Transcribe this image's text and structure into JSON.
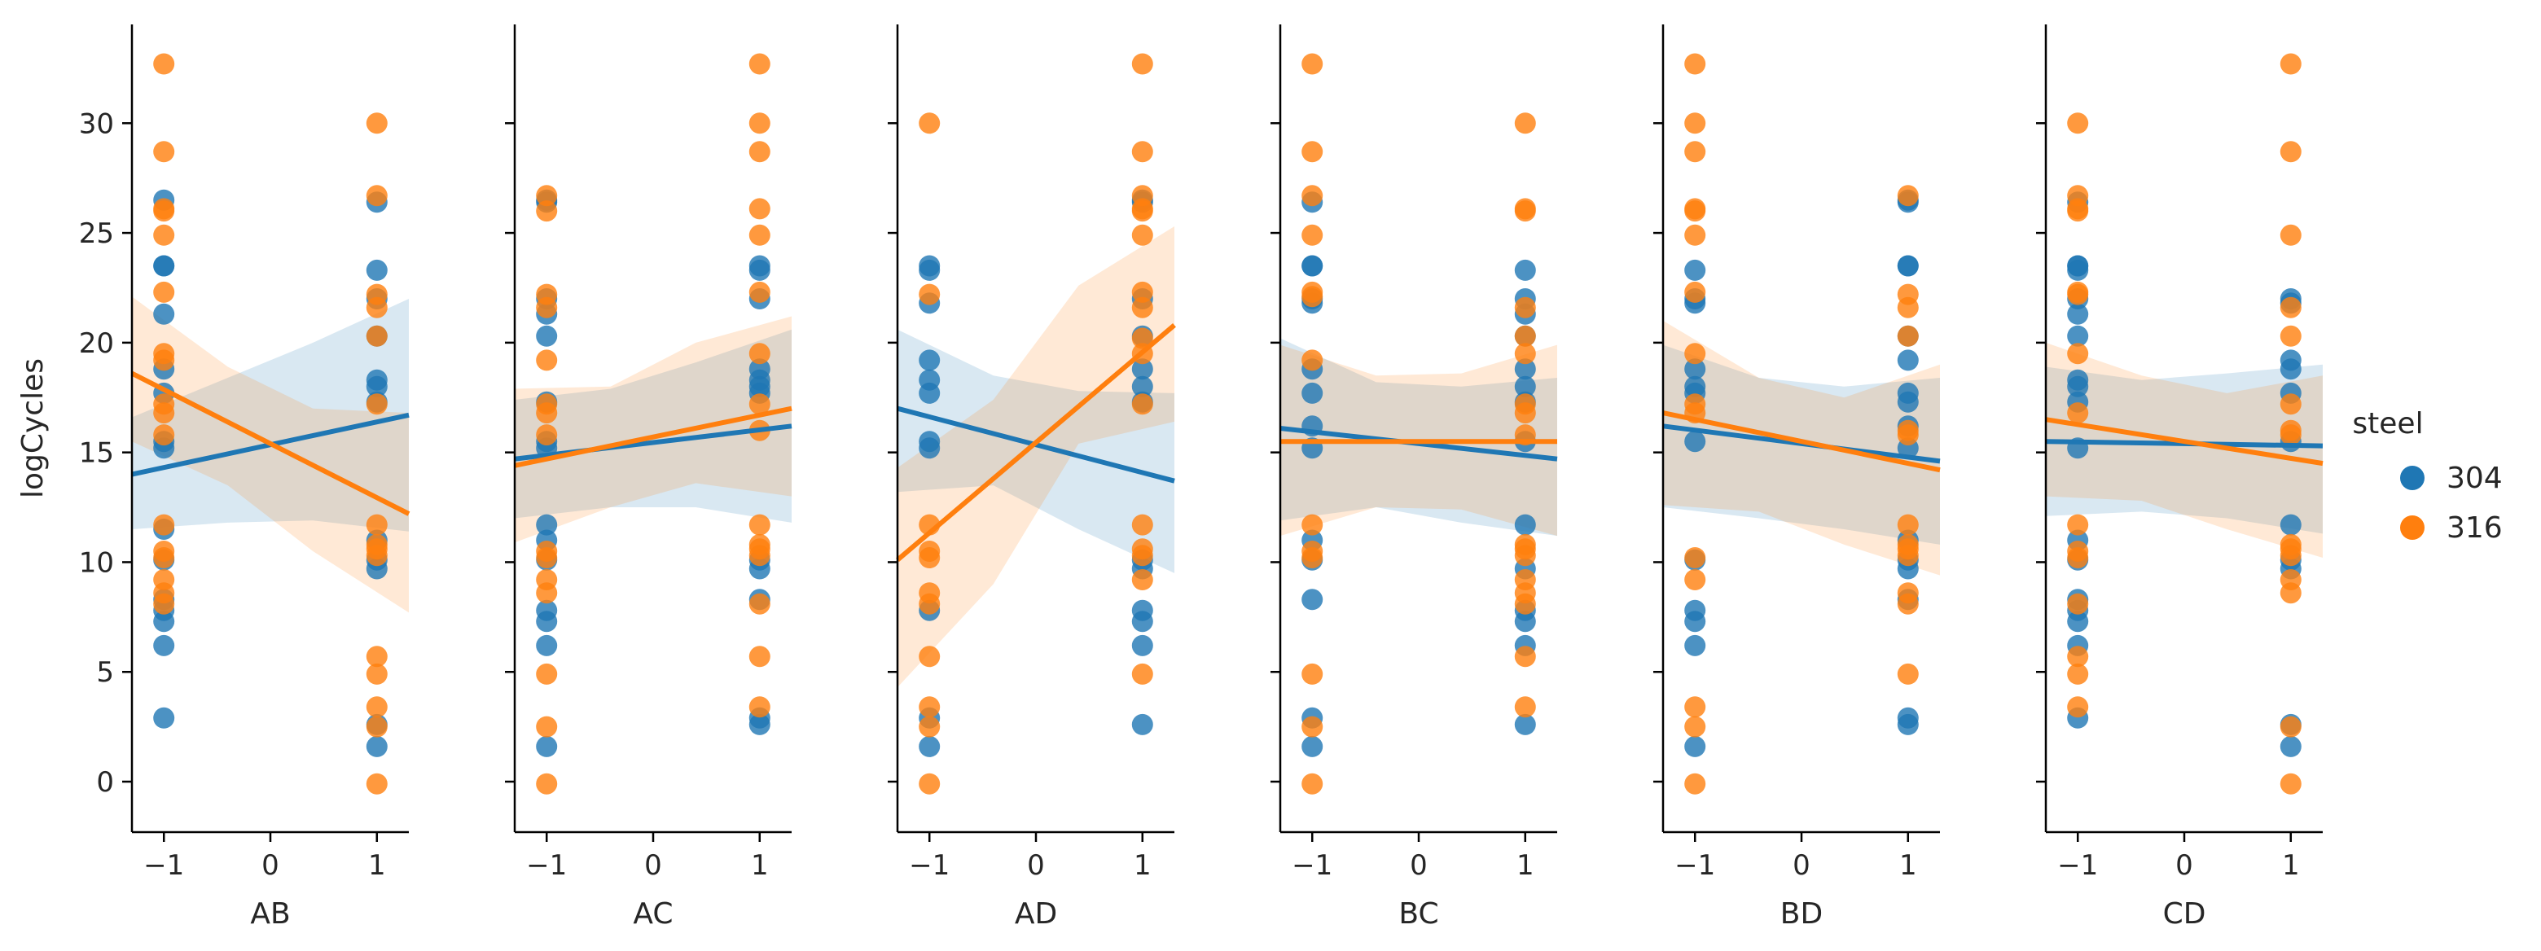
{
  "chart_data": {
    "type": "scatter",
    "title": "",
    "ylabel": "logCycles",
    "ylim": [
      -2.3,
      34.5
    ],
    "xlim": [
      -1.3,
      1.3
    ],
    "yticks": [
      0,
      5,
      10,
      15,
      20,
      25,
      30
    ],
    "xticks": [
      -1,
      0,
      1
    ],
    "ytick_labels": [
      "0",
      "5",
      "10",
      "15",
      "20",
      "25",
      "30"
    ],
    "xtick_labels": [
      "−1",
      "0",
      "1"
    ],
    "legend": {
      "title": "steel",
      "entries": [
        "304",
        "316"
      ],
      "position": "right"
    },
    "series_colors": {
      "304": "#1f77b4",
      "316": "#ff7f0e"
    },
    "panels": [
      {
        "xlabel": "AB",
        "points": {
          "304": {
            "neg": [
              2.9,
              6.2,
              7.3,
              7.8,
              8.3,
              10.1,
              11.5,
              15.2,
              15.5,
              17.7,
              18.8,
              21.3,
              23.5,
              23.5,
              26.5
            ],
            "pos": [
              1.6,
              2.6,
              9.7,
              10.1,
              11.0,
              17.3,
              18.0,
              18.3,
              20.3,
              22.0,
              23.3,
              26.4
            ]
          },
          "316": {
            "neg": [
              8.1,
              8.6,
              9.2,
              10.2,
              10.5,
              11.7,
              15.8,
              16.8,
              17.2,
              19.2,
              19.5,
              22.3,
              24.9,
              26.0,
              26.1,
              28.7,
              32.7
            ],
            "pos": [
              -0.1,
              2.5,
              3.4,
              4.9,
              5.7,
              10.3,
              10.6,
              10.8,
              11.7,
              17.2,
              20.3,
              21.6,
              22.2,
              26.7,
              30.0
            ]
          }
        },
        "fits": {
          "304": {
            "y_left": 14.0,
            "y_right": 16.7,
            "ci_low": [
              11.5,
              11.8,
              11.9,
              11.4
            ],
            "ci_high": [
              16.6,
              18.4,
              20.0,
              22.0
            ]
          },
          "316": {
            "y_left": 18.6,
            "y_right": 12.2,
            "ci_low": [
              15.5,
              13.5,
              10.5,
              7.7
            ],
            "ci_high": [
              22.1,
              18.9,
              17.0,
              16.8
            ]
          }
        }
      },
      {
        "xlabel": "AC",
        "points": {
          "304": {
            "neg": [
              1.6,
              6.2,
              7.3,
              7.8,
              10.1,
              11.0,
              11.7,
              15.2,
              15.5,
              17.3,
              20.3,
              21.3,
              22.0,
              26.4,
              26.5
            ],
            "pos": [
              2.6,
              2.9,
              8.3,
              9.7,
              10.1,
              17.7,
              18.0,
              18.3,
              18.8,
              22.0,
              23.3,
              23.5
            ]
          },
          "316": {
            "neg": [
              -0.1,
              2.5,
              4.9,
              8.6,
              9.2,
              10.2,
              10.5,
              15.8,
              16.8,
              17.2,
              19.2,
              21.6,
              22.2,
              26.0,
              26.7
            ],
            "pos": [
              3.4,
              5.7,
              8.1,
              10.3,
              10.6,
              10.8,
              11.7,
              16.0,
              17.2,
              19.5,
              22.3,
              24.9,
              26.1,
              28.7,
              30.0,
              32.7
            ]
          }
        },
        "fits": {
          "304": {
            "y_left": 14.7,
            "y_right": 16.2,
            "ci_low": [
              12.0,
              12.5,
              12.5,
              11.8
            ],
            "ci_high": [
              17.4,
              17.9,
              19.1,
              20.6
            ]
          },
          "316": {
            "y_left": 14.4,
            "y_right": 17.0,
            "ci_low": [
              10.9,
              12.5,
              13.6,
              13.0
            ],
            "ci_high": [
              17.9,
              18.0,
              20.0,
              21.2
            ]
          }
        }
      },
      {
        "xlabel": "AD",
        "points": {
          "304": {
            "neg": [
              1.6,
              2.9,
              7.8,
              15.2,
              15.5,
              17.7,
              18.3,
              19.2,
              21.8,
              23.3,
              23.5
            ],
            "pos": [
              2.6,
              6.2,
              7.3,
              7.8,
              9.7,
              10.1,
              17.3,
              18.0,
              18.8,
              20.3,
              22.0,
              26.4,
              26.5
            ]
          },
          "316": {
            "neg": [
              -0.1,
              2.5,
              3.4,
              5.7,
              8.1,
              8.6,
              10.2,
              10.5,
              11.7,
              22.2,
              30.0
            ],
            "pos": [
              4.9,
              9.2,
              10.3,
              10.6,
              11.7,
              17.2,
              19.5,
              20.2,
              21.6,
              22.3,
              24.9,
              26.0,
              26.1,
              26.7,
              28.7,
              32.7
            ]
          }
        },
        "fits": {
          "304": {
            "y_left": 17.0,
            "y_right": 13.7,
            "ci_low": [
              13.2,
              13.5,
              11.5,
              9.5
            ],
            "ci_high": [
              20.6,
              18.5,
              17.8,
              17.7
            ]
          },
          "316": {
            "y_left": 10.1,
            "y_right": 20.8,
            "ci_low": [
              4.3,
              9.0,
              15.4,
              16.4
            ],
            "ci_high": [
              14.3,
              17.4,
              22.6,
              25.3
            ]
          }
        }
      },
      {
        "xlabel": "BC",
        "points": {
          "304": {
            "neg": [
              1.6,
              2.9,
              8.3,
              10.1,
              11.0,
              15.2,
              16.2,
              17.7,
              18.8,
              21.8,
              22.0,
              23.5,
              23.5,
              26.4
            ],
            "pos": [
              2.6,
              6.2,
              7.3,
              7.8,
              9.7,
              11.7,
              15.5,
              17.3,
              18.0,
              18.8,
              20.3,
              21.3,
              22.0,
              23.3
            ]
          },
          "316": {
            "neg": [
              -0.1,
              2.5,
              4.9,
              10.2,
              10.5,
              11.7,
              19.2,
              22.1,
              22.3,
              24.9,
              26.7,
              28.7,
              32.7
            ],
            "pos": [
              3.4,
              5.7,
              8.1,
              8.6,
              9.2,
              10.3,
              10.6,
              10.8,
              15.8,
              16.8,
              17.2,
              19.5,
              20.3,
              21.6,
              26.0,
              26.1,
              30.0
            ]
          }
        },
        "fits": {
          "304": {
            "y_left": 16.1,
            "y_right": 14.7,
            "ci_low": [
              11.9,
              12.5,
              11.8,
              11.2
            ],
            "ci_high": [
              20.2,
              18.2,
              18.0,
              18.4
            ]
          },
          "316": {
            "y_left": 15.5,
            "y_right": 15.5,
            "ci_low": [
              11.2,
              12.5,
              12.4,
              11.2
            ],
            "ci_high": [
              19.9,
              18.5,
              18.6,
              19.9
            ]
          }
        }
      },
      {
        "xlabel": "BD",
        "points": {
          "304": {
            "neg": [
              1.6,
              6.2,
              7.3,
              7.8,
              10.1,
              15.5,
              17.7,
              18.0,
              18.8,
              21.8,
              22.0,
              23.3
            ],
            "pos": [
              2.6,
              2.9,
              8.3,
              9.7,
              10.1,
              11.0,
              15.2,
              16.2,
              17.3,
              17.7,
              19.2,
              20.3,
              23.5,
              23.5,
              26.4,
              26.5
            ]
          },
          "316": {
            "neg": [
              -0.1,
              2.5,
              3.4,
              9.2,
              10.2,
              16.8,
              17.2,
              19.5,
              22.3,
              24.9,
              26.0,
              26.1,
              28.7,
              30.0,
              32.7
            ],
            "pos": [
              4.9,
              8.1,
              8.6,
              10.3,
              10.6,
              10.8,
              11.7,
              15.8,
              16.0,
              20.3,
              21.6,
              22.2,
              26.7
            ]
          }
        },
        "fits": {
          "304": {
            "y_left": 16.2,
            "y_right": 14.6,
            "ci_low": [
              12.5,
              12.0,
              11.5,
              10.8
            ],
            "ci_high": [
              19.9,
              18.4,
              18.0,
              18.4
            ]
          },
          "316": {
            "y_left": 16.8,
            "y_right": 14.2,
            "ci_low": [
              12.6,
              12.3,
              10.8,
              9.4
            ],
            "ci_high": [
              21.0,
              18.4,
              17.5,
              19.0
            ]
          }
        }
      },
      {
        "xlabel": "CD",
        "points": {
          "304": {
            "neg": [
              2.9,
              6.2,
              7.3,
              7.8,
              8.3,
              10.1,
              11.0,
              15.2,
              17.3,
              18.0,
              18.3,
              20.3,
              21.3,
              22.0,
              23.3,
              23.5,
              23.5,
              26.4
            ],
            "pos": [
              1.6,
              2.6,
              9.7,
              10.1,
              11.7,
              15.5,
              17.7,
              18.8,
              19.2,
              21.8,
              22.0
            ]
          },
          "316": {
            "neg": [
              3.4,
              4.9,
              5.7,
              8.1,
              10.2,
              10.5,
              11.7,
              16.8,
              19.5,
              22.2,
              22.3,
              26.0,
              26.1,
              26.7,
              30.0
            ],
            "pos": [
              -0.1,
              2.5,
              8.6,
              9.2,
              10.3,
              10.6,
              10.8,
              15.8,
              16.0,
              17.2,
              20.3,
              21.6,
              24.9,
              28.7,
              32.7
            ]
          }
        },
        "fits": {
          "304": {
            "y_left": 15.5,
            "y_right": 15.3,
            "ci_low": [
              12.1,
              12.3,
              12.0,
              11.3
            ],
            "ci_high": [
              18.9,
              18.3,
              18.6,
              19.0
            ]
          },
          "316": {
            "y_left": 16.5,
            "y_right": 14.5,
            "ci_low": [
              13.0,
              12.8,
              11.5,
              10.2
            ],
            "ci_high": [
              20.0,
              18.5,
              17.7,
              18.5
            ]
          }
        }
      }
    ]
  }
}
